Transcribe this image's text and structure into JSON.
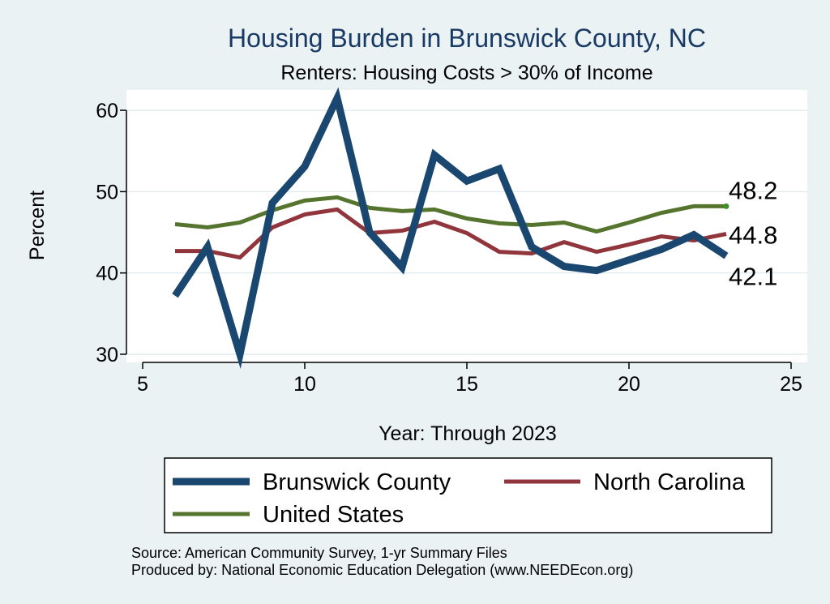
{
  "chart_data": {
    "type": "line",
    "title": "Housing Burden in Brunswick County, NC",
    "subtitle": "Renters: Housing Costs > 30% of Income",
    "xlabel": "Year: Through 2023",
    "ylabel": "Percent",
    "xlim": [
      4.5,
      25.5
    ],
    "ylim": [
      29,
      62.5
    ],
    "xticks": [
      5,
      10,
      15,
      20,
      25
    ],
    "yticks": [
      30,
      40,
      50,
      60
    ],
    "grid": true,
    "legend_position": "bottom",
    "series": [
      {
        "name": "Brunswick County",
        "color": "#1a476f",
        "x": [
          6,
          7,
          8,
          9,
          10,
          11,
          12,
          13,
          14,
          15,
          16,
          17,
          18,
          19,
          20,
          21,
          22,
          23
        ],
        "values": [
          37.2,
          43.2,
          30.0,
          48.6,
          53.1,
          61.5,
          45.0,
          40.7,
          54.5,
          51.3,
          52.8,
          43.2,
          40.8,
          40.3,
          41.6,
          42.9,
          44.7,
          42.1
        ],
        "end_label": "42.1"
      },
      {
        "name": "North Carolina",
        "color": "#90353b",
        "x": [
          6,
          7,
          8,
          9,
          10,
          11,
          12,
          13,
          14,
          15,
          16,
          17,
          18,
          19,
          20,
          21,
          22,
          23
        ],
        "values": [
          42.7,
          42.7,
          41.9,
          45.6,
          47.2,
          47.8,
          44.9,
          45.2,
          46.3,
          44.9,
          42.6,
          42.4,
          43.8,
          42.6,
          43.5,
          44.5,
          44.0,
          44.8
        ],
        "end_label": "44.8"
      },
      {
        "name": "United States",
        "color": "#55752f",
        "x": [
          6,
          7,
          8,
          9,
          10,
          11,
          12,
          13,
          14,
          15,
          16,
          17,
          18,
          19,
          20,
          21,
          22,
          23
        ],
        "values": [
          46.0,
          45.6,
          46.2,
          47.7,
          48.9,
          49.3,
          48.0,
          47.6,
          47.8,
          46.7,
          46.1,
          45.9,
          46.2,
          45.1,
          46.2,
          47.4,
          48.2,
          48.2
        ],
        "end_label": "48.2"
      }
    ],
    "notes": [
      "Source: American Community Survey, 1-yr Summary Files",
      "Produced by: National Economic Education Delegation (www.NEEDEcon.org)"
    ]
  }
}
